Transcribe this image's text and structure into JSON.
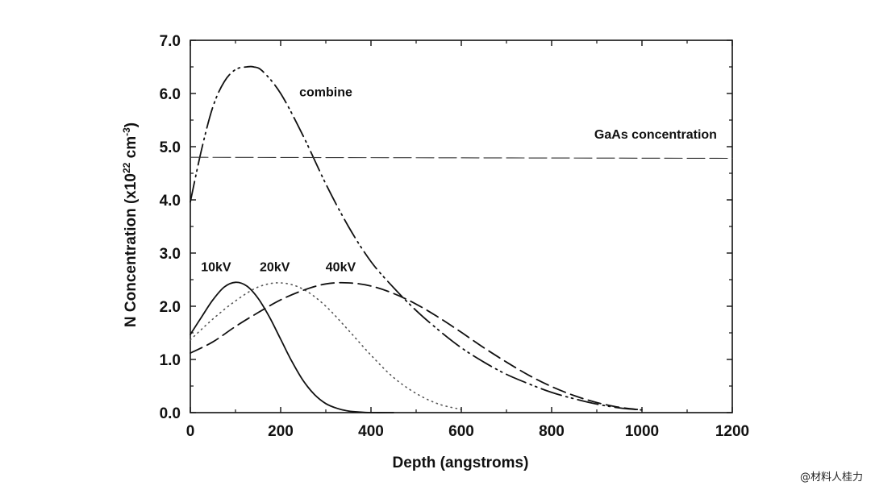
{
  "chart_data": {
    "type": "line",
    "xlabel": "Depth (angstroms)",
    "ylabel_main": "N Concentration (x10",
    "ylabel_exp1": "22",
    "ylabel_mid": " cm",
    "ylabel_exp2": "-3",
    "ylabel_end": ")",
    "xlim": [
      0,
      1200
    ],
    "ylim": [
      0.0,
      7.0
    ],
    "x_ticks": [
      "0",
      "200",
      "400",
      "600",
      "800",
      "1000",
      "1200"
    ],
    "y_ticks": [
      "0.0",
      "1.0",
      "2.0",
      "3.0",
      "4.0",
      "5.0",
      "6.0",
      "7.0"
    ],
    "grid": false,
    "series": [
      {
        "name": "10kV",
        "style": "solid",
        "color": "#111111",
        "x": [
          0,
          25,
          50,
          75,
          100,
          125,
          150,
          175,
          200,
          225,
          250,
          275,
          300,
          325,
          350,
          375,
          400,
          450
        ],
        "y": [
          1.47,
          1.8,
          2.12,
          2.36,
          2.45,
          2.38,
          2.15,
          1.8,
          1.38,
          0.96,
          0.6,
          0.34,
          0.17,
          0.08,
          0.03,
          0.01,
          0.0,
          0.0
        ]
      },
      {
        "name": "20kV",
        "style": "dotted",
        "color": "#555555",
        "x": [
          0,
          50,
          100,
          150,
          200,
          250,
          300,
          350,
          400,
          450,
          500,
          550,
          600
        ],
        "y": [
          1.37,
          1.76,
          2.1,
          2.36,
          2.44,
          2.32,
          2.0,
          1.55,
          1.08,
          0.66,
          0.36,
          0.16,
          0.06
        ]
      },
      {
        "name": "40kV",
        "style": "dashed",
        "color": "#111111",
        "x": [
          0,
          50,
          100,
          150,
          200,
          250,
          300,
          350,
          400,
          450,
          500,
          550,
          600,
          650,
          700,
          750,
          800,
          850,
          900,
          950,
          1000
        ],
        "y": [
          1.12,
          1.33,
          1.62,
          1.88,
          2.12,
          2.3,
          2.42,
          2.44,
          2.38,
          2.24,
          2.04,
          1.79,
          1.51,
          1.22,
          0.95,
          0.7,
          0.49,
          0.32,
          0.19,
          0.1,
          0.05
        ]
      },
      {
        "name": "combine",
        "style": "dash-dot-dot",
        "color": "#111111",
        "x": [
          0,
          25,
          50,
          75,
          100,
          125,
          140,
          160,
          200,
          250,
          300,
          350,
          400,
          450,
          500,
          550,
          600,
          650,
          700,
          750,
          800,
          850,
          900,
          950,
          1000
        ],
        "y": [
          3.96,
          4.95,
          5.75,
          6.22,
          6.45,
          6.5,
          6.5,
          6.42,
          6.0,
          5.2,
          4.3,
          3.5,
          2.84,
          2.35,
          1.92,
          1.55,
          1.22,
          0.95,
          0.72,
          0.54,
          0.38,
          0.26,
          0.16,
          0.09,
          0.05
        ]
      },
      {
        "name": "GaAs concentration",
        "style": "long-dash",
        "color": "#333333",
        "x": [
          0,
          1200
        ],
        "y": [
          4.8,
          4.78
        ]
      }
    ],
    "annotations": [
      {
        "text": "combine",
        "x": 300,
        "y": 5.95
      },
      {
        "text": "GaAs concentration",
        "x": 1166,
        "y": 5.15
      },
      {
        "text": "10kV",
        "x": 57,
        "y": 2.66
      },
      {
        "text": "20kV",
        "x": 187,
        "y": 2.66
      },
      {
        "text": "40kV",
        "x": 333,
        "y": 2.66
      }
    ]
  },
  "watermark": "@材料人桂力"
}
